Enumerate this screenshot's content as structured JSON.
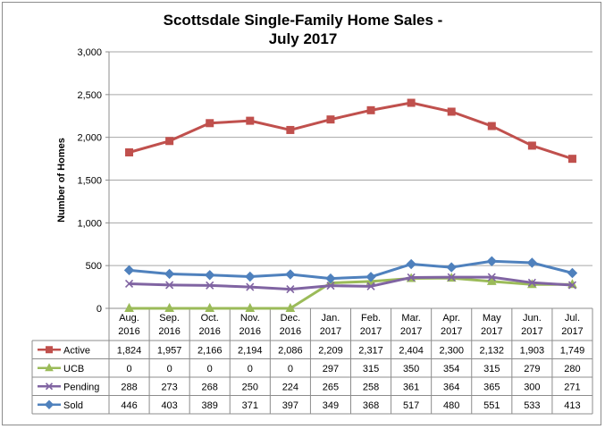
{
  "chart_data": {
    "type": "line",
    "title": "Scottsdale Single-Family Home Sales - July 2017",
    "title_lines": [
      "Scottsdale Single-Family Home Sales -",
      "July 2017"
    ],
    "ylabel": "Number of Homes",
    "ylim": [
      0,
      3000
    ],
    "yticks": [
      "0",
      "500",
      "1,000",
      "1,500",
      "2,000",
      "2,500",
      "3,000"
    ],
    "ytick_values": [
      0,
      500,
      1000,
      1500,
      2000,
      2500,
      3000
    ],
    "grid": "horizontal",
    "legend": "data-table",
    "categories": [
      [
        "Aug.",
        "2016"
      ],
      [
        "Sep.",
        "2016"
      ],
      [
        "Oct.",
        "2016"
      ],
      [
        "Nov.",
        "2016"
      ],
      [
        "Dec.",
        "2016"
      ],
      [
        "Jan.",
        "2017"
      ],
      [
        "Feb.",
        "2017"
      ],
      [
        "Mar.",
        "2017"
      ],
      [
        "Apr.",
        "2017"
      ],
      [
        "May",
        "2017"
      ],
      [
        "Jun.",
        "2017"
      ],
      [
        "Jul.",
        "2017"
      ]
    ],
    "series": [
      {
        "name": "Active",
        "color": "#c0504d",
        "marker": "square",
        "values": [
          1824,
          1957,
          2166,
          2194,
          2086,
          2209,
          2317,
          2404,
          2300,
          2132,
          1903,
          1749
        ],
        "labels": [
          "1,824",
          "1,957",
          "2,166",
          "2,194",
          "2,086",
          "2,209",
          "2,317",
          "2,404",
          "2,300",
          "2,132",
          "1,903",
          "1,749"
        ]
      },
      {
        "name": "UCB",
        "color": "#9bbb59",
        "marker": "triangle",
        "values": [
          0,
          0,
          0,
          0,
          0,
          297,
          315,
          350,
          354,
          315,
          279,
          280
        ],
        "labels": [
          "0",
          "0",
          "0",
          "0",
          "0",
          "297",
          "315",
          "350",
          "354",
          "315",
          "279",
          "280"
        ]
      },
      {
        "name": "Pending",
        "color": "#8064a2",
        "marker": "x",
        "values": [
          288,
          273,
          268,
          250,
          224,
          265,
          258,
          361,
          364,
          365,
          300,
          271
        ],
        "labels": [
          "288",
          "273",
          "268",
          "250",
          "224",
          "265",
          "258",
          "361",
          "364",
          "365",
          "300",
          "271"
        ]
      },
      {
        "name": "Sold",
        "color": "#4f81bd",
        "marker": "diamond",
        "values": [
          446,
          403,
          389,
          371,
          397,
          349,
          368,
          517,
          480,
          551,
          533,
          413
        ],
        "labels": [
          "446",
          "403",
          "389",
          "371",
          "397",
          "349",
          "368",
          "517",
          "480",
          "551",
          "533",
          "413"
        ]
      }
    ]
  }
}
